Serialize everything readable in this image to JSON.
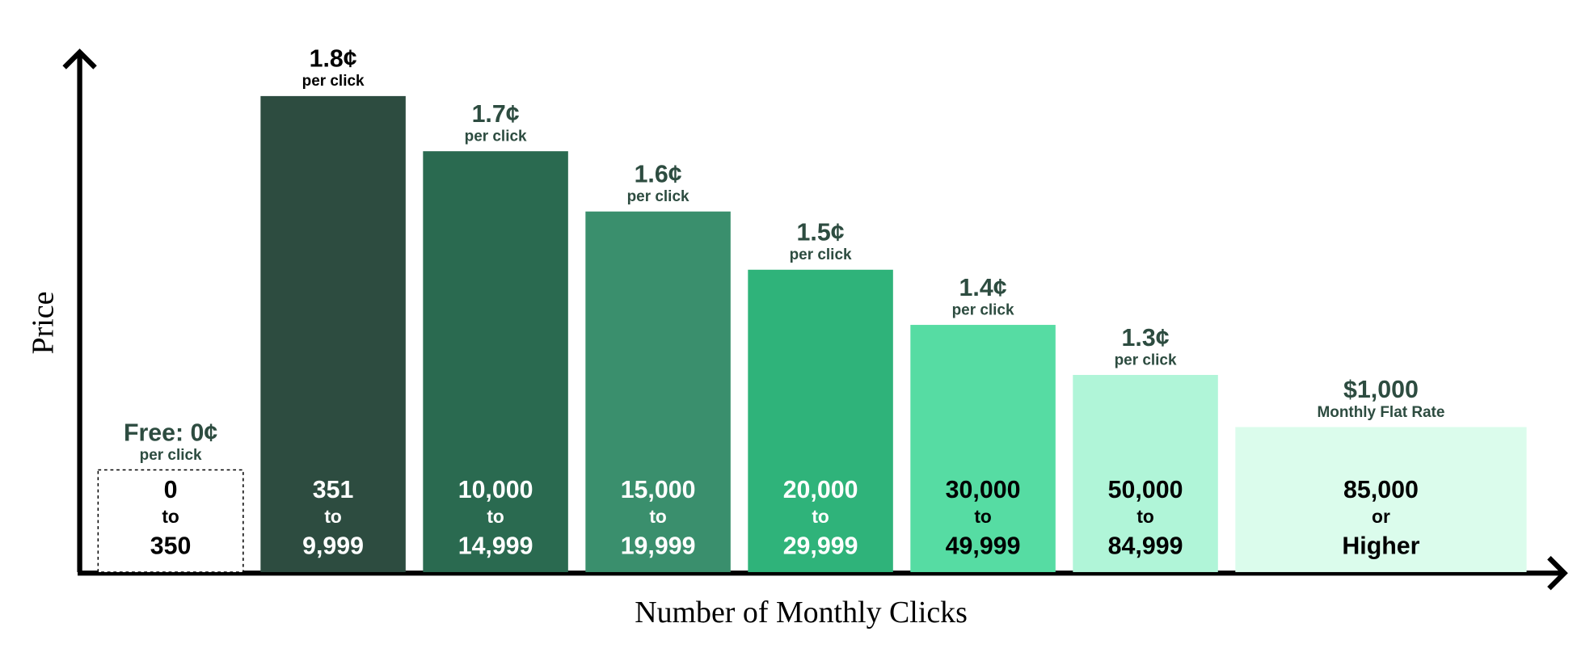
{
  "axes": {
    "y_label": "Price",
    "x_label": "Number of Monthly Clicks"
  },
  "tiers": [
    {
      "price": "Free: 0¢",
      "unit": "per click",
      "range": [
        "0",
        "to",
        "350"
      ],
      "color": "#ffffff"
    },
    {
      "price": "1.8¢",
      "unit": "per click",
      "range": [
        "351",
        "to",
        "9,999"
      ],
      "color": "#2d4c40"
    },
    {
      "price": "1.7¢",
      "unit": "per click",
      "range": [
        "10,000",
        "to",
        "14,999"
      ],
      "color": "#2a6a50"
    },
    {
      "price": "1.6¢",
      "unit": "per click",
      "range": [
        "15,000",
        "to",
        "19,999"
      ],
      "color": "#3a8f6d"
    },
    {
      "price": "1.5¢",
      "unit": "per click",
      "range": [
        "20,000",
        "to",
        "29,999"
      ],
      "color": "#2fb37a"
    },
    {
      "price": "1.4¢",
      "unit": "per click",
      "range": [
        "30,000",
        "to",
        "49,999"
      ],
      "color": "#56dca3"
    },
    {
      "price": "1.3¢",
      "unit": "per click",
      "range": [
        "50,000",
        "to",
        "84,999"
      ],
      "color": "#b0f5d8"
    },
    {
      "price": "$1,000",
      "unit": "Monthly Flat Rate",
      "range": [
        "85,000",
        "or",
        "Higher"
      ],
      "color": "#dbfcec"
    }
  ]
}
